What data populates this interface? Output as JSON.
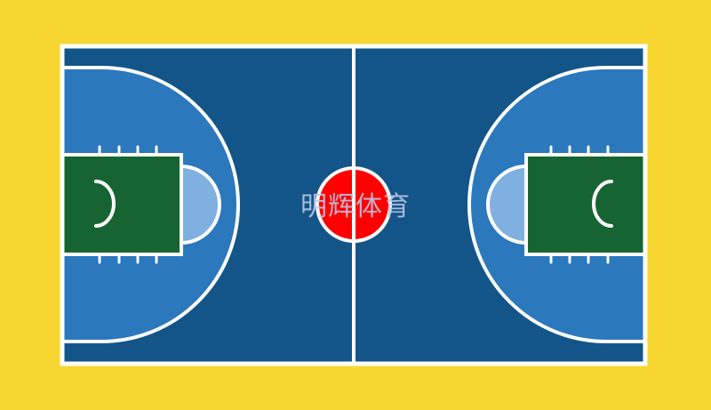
{
  "watermark": {
    "text": "明辉体育"
  },
  "colors": {
    "surround": "#f7d631",
    "court": "#135588",
    "three_point_area": "#2b78bc",
    "key": "#156432",
    "free_throw_semicircle": "#80b0e0",
    "center_circle": "#ff0000",
    "lines": "#ffffff"
  }
}
